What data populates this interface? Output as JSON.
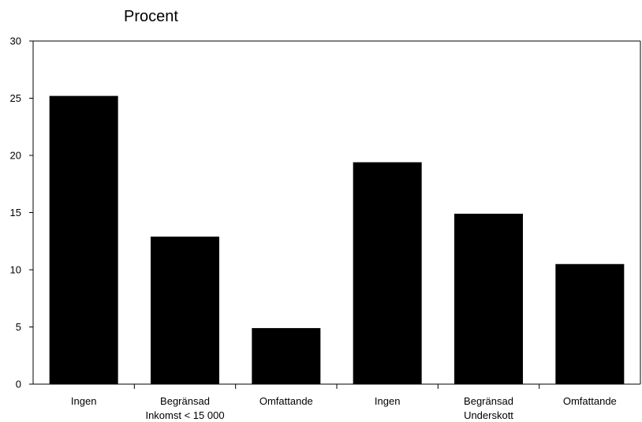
{
  "chart_data": {
    "type": "bar",
    "ylabel": "Procent",
    "ylim": [
      0,
      30
    ],
    "yticks": [
      0,
      5,
      10,
      15,
      20,
      25,
      30
    ],
    "categories": [
      [
        "Ingen"
      ],
      [
        "Begränsad",
        "Inkomst < 15 000"
      ],
      [
        "Omfattande"
      ],
      [
        "Ingen"
      ],
      [
        "Begränsad",
        "Underskott"
      ],
      [
        "Omfattande"
      ]
    ],
    "values": [
      25.2,
      12.9,
      4.9,
      19.4,
      14.9,
      10.5
    ],
    "grid": false,
    "legend": "none",
    "bar_color": "#000000",
    "axis_color": "#000000"
  }
}
